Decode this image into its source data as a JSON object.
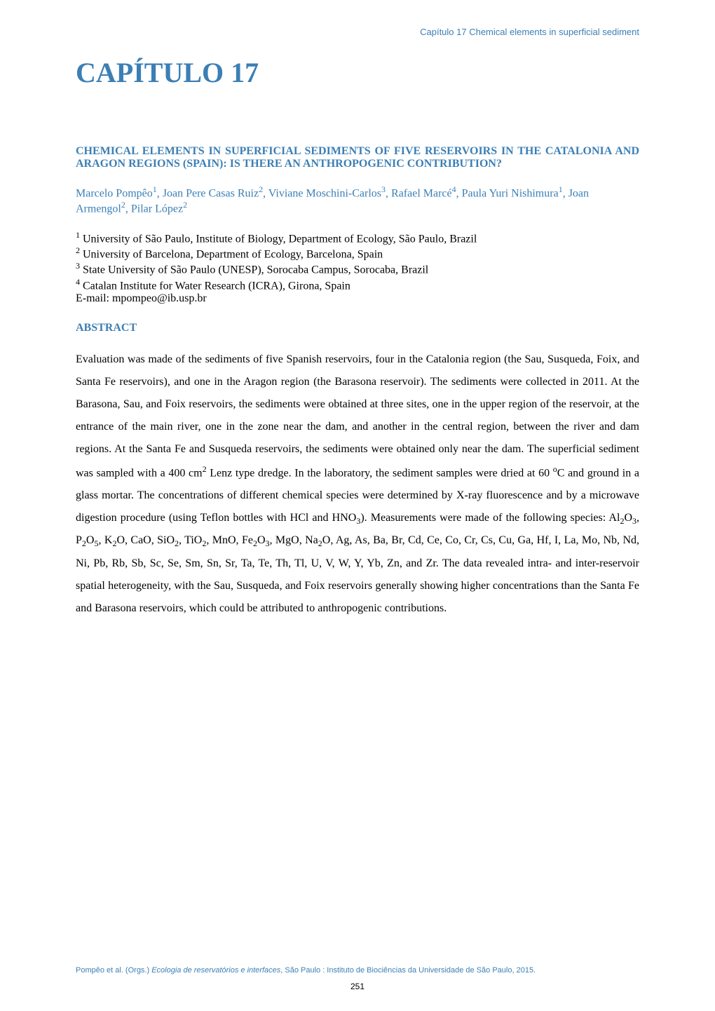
{
  "running_header": {
    "text": "Capítulo 17   Chemical elements in superficial sediment",
    "color": "#3b7fb5",
    "fontsize": 13
  },
  "chapter_title": {
    "text": "CAPÍTULO 17",
    "color": "#3b7fb5",
    "fontsize": 40
  },
  "article_title": {
    "text": "CHEMICAL ELEMENTS IN SUPERFICIAL SEDIMENTS OF FIVE RESERVOIRS IN THE CATALONIA AND ARAGON REGIONS (SPAIN): IS THERE AN ANTHROPOGENIC CONTRIBUTION?",
    "color": "#3b7fb5",
    "fontsize": 16
  },
  "authors": {
    "html": "Marcelo Pompêo<span class='sup'>1</span>, Joan Pere Casas Ruiz<span class='sup'>2</span>, Viviane Moschini-Carlos<span class='sup'>3</span>, Rafael Marcé<span class='sup'>4</span>, Paula Yuri Nishimura<span class='sup'>1</span>, Joan Armengol<span class='sup'>2</span>, Pilar López<span class='sup'>2</span>",
    "color": "#3b7fb5",
    "fontsize": 16
  },
  "affiliations": {
    "lines": [
      "<span class='sup'>1</span> University of São Paulo, Institute of Biology, Department of Ecology, São Paulo, Brazil",
      "<span class='sup'>2</span> University of Barcelona, Department of Ecology, Barcelona, Spain",
      "<span class='sup'>3</span> State University of São Paulo (UNESP), Sorocaba Campus, Sorocaba, Brazil",
      "<span class='sup'>4</span> Catalan Institute for Water Research (ICRA), Girona, Spain",
      "E-mail: mpompeo@ib.usp.br"
    ],
    "color": "#000000",
    "fontsize": 16
  },
  "abstract_heading": {
    "text": "ABSTRACT",
    "color": "#3b7fb5",
    "fontsize": 16
  },
  "abstract_body": {
    "html": "Evaluation was made of the sediments of five Spanish reservoirs, four in the Catalonia region (the Sau, Susqueda, Foix, and Santa Fe reservoirs), and one in the Aragon region (the Barasona reservoir). The sediments were collected in 2011. At the Barasona, Sau, and Foix reservoirs, the sediments were obtained at three sites, one in the upper region of the reservoir, at the entrance of the main river, one in the zone near the dam, and another in the central region, between the river and dam regions. At the Santa Fe and Susqueda reservoirs, the sediments were obtained only near the dam. The superficial sediment was sampled with a 400 cm<span class='sup'>2</span> Lenz type dredge. In the laboratory, the sediment samples were dried at 60 <span class='sup'>o</span>C and ground in a glass mortar. The concentrations of different chemical species were determined by X-ray fluorescence and by a microwave digestion procedure (using Teflon bottles with HCl and HNO<span style='vertical-align:sub;font-size:0.75em'>3</span>). Measurements were made of the following species: Al<span style='vertical-align:sub;font-size:0.75em'>2</span>O<span style='vertical-align:sub;font-size:0.75em'>3</span>, P<span style='vertical-align:sub;font-size:0.75em'>2</span>O<span style='vertical-align:sub;font-size:0.75em'>5</span>, K<span style='vertical-align:sub;font-size:0.75em'>2</span>O, CaO, SiO<span style='vertical-align:sub;font-size:0.75em'>2</span>, TiO<span style='vertical-align:sub;font-size:0.75em'>2</span>, MnO, Fe<span style='vertical-align:sub;font-size:0.75em'>2</span>O<span style='vertical-align:sub;font-size:0.75em'>3</span>, MgO, Na<span style='vertical-align:sub;font-size:0.75em'>2</span>O, Ag, As, Ba, Br, Cd, Ce, Co, Cr, Cs, Cu, Ga, Hf, I, La, Mo, Nb, Nd, Ni, Pb, Rb, Sb, Sc, Se, Sm, Sn, Sr, Ta, Te, Th, Tl, U, V, W, Y, Yb, Zn, and Zr. The data revealed intra- and inter-reservoir spatial heterogeneity, with the Sau, Susqueda, and Foix reservoirs generally showing higher concentrations than the Santa Fe and Barasona reservoirs, which could be attributed to anthropogenic contributions.",
    "color": "#000000",
    "fontsize": 16
  },
  "footer_citation": {
    "html": "Pompêo et al. (Orgs.) <span class='ital'>Ecologia de reservatórios e interfaces</span>, São Paulo : Instituto de Biociências da Universidade de São Paulo, 2015.",
    "color": "#3b7fb5",
    "fontsize": 11
  },
  "page_number": {
    "text": "251",
    "color": "#000000",
    "fontsize": 12
  },
  "background_color": "#ffffff"
}
